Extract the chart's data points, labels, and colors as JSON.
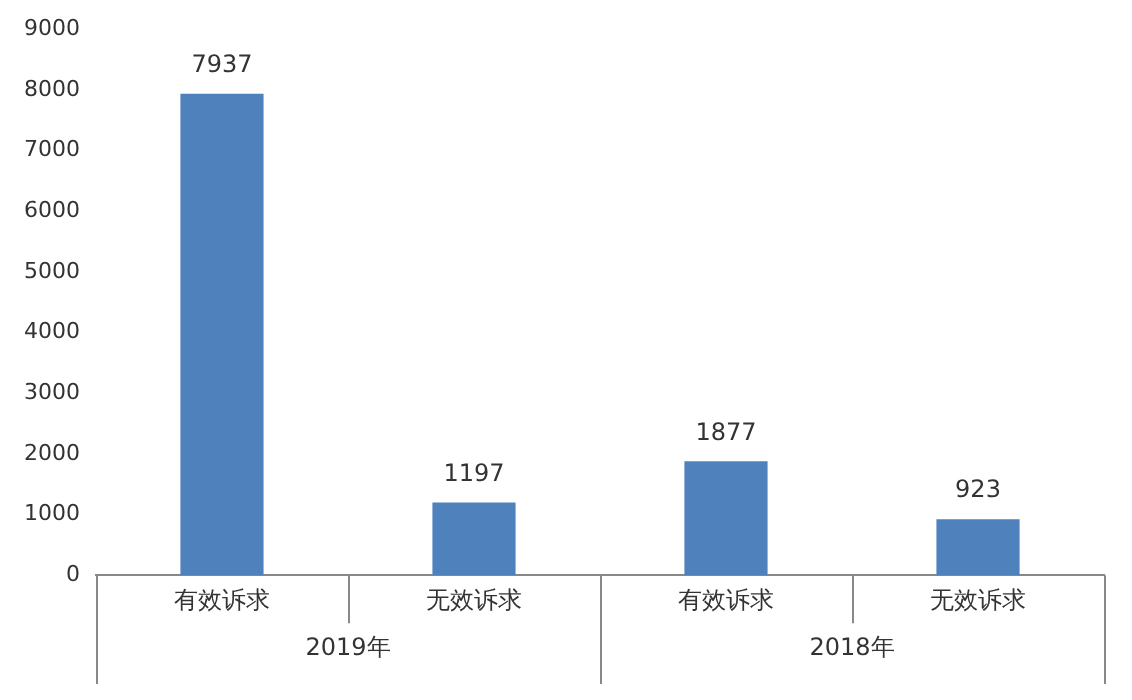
{
  "chart_data": {
    "type": "bar",
    "categories": [
      "有效诉求",
      "无效诉求",
      "有效诉求",
      "无效诉求"
    ],
    "values": [
      7937,
      1197,
      1877,
      923
    ],
    "color": "#4f81bd",
    "ylim": [
      0,
      9000
    ],
    "yticks": [
      0,
      1000,
      2000,
      3000,
      4000,
      5000,
      6000,
      7000,
      8000,
      9000
    ],
    "grid": false,
    "legend": false,
    "data_labels": true,
    "annotations": [
      "2019年",
      "2018年"
    ]
  }
}
